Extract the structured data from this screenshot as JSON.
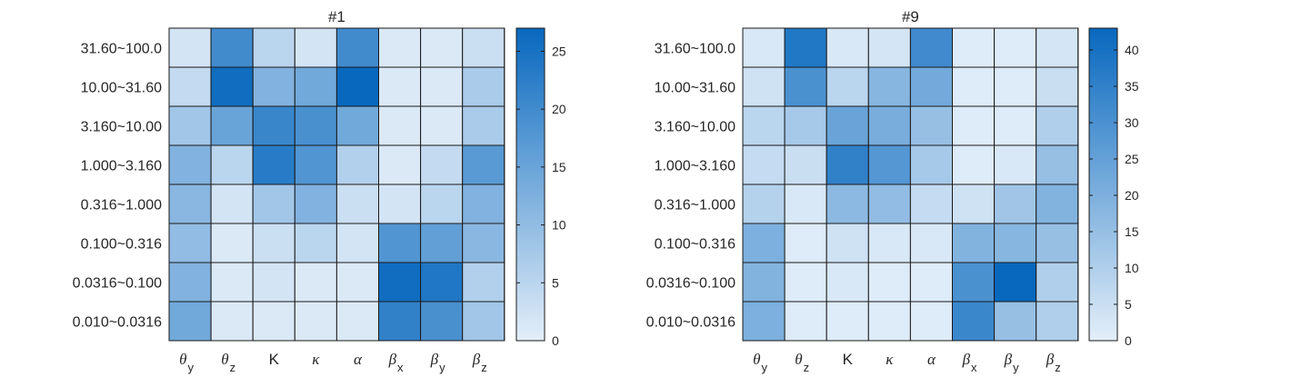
{
  "chart_data": [
    {
      "type": "heatmap",
      "title": "#1",
      "rows": [
        "31.60~100.0",
        "10.00~31.60",
        "3.160~10.00",
        "1.000~3.160",
        "0.316~1.000",
        "0.100~0.316",
        "0.0316~0.100",
        "0.010~0.0316"
      ],
      "columns": [
        {
          "base": "θ",
          "sub": "y"
        },
        {
          "base": "θ",
          "sub": "z"
        },
        {
          "base": "K",
          "sub": ""
        },
        {
          "base": "κ",
          "sub": ""
        },
        {
          "base": "α",
          "sub": ""
        },
        {
          "base": "β",
          "sub": "x"
        },
        {
          "base": "β",
          "sub": "y"
        },
        {
          "base": "β",
          "sub": "z"
        }
      ],
      "values": [
        [
          2,
          20,
          5,
          2,
          20,
          1,
          1,
          3
        ],
        [
          4,
          26,
          12,
          14,
          27,
          1,
          1,
          7
        ],
        [
          8,
          15,
          21,
          19,
          14,
          1,
          1,
          7
        ],
        [
          12,
          5,
          23,
          18,
          6,
          1,
          4,
          17
        ],
        [
          11,
          2,
          8,
          12,
          3,
          2,
          5,
          12
        ],
        [
          10,
          1,
          3,
          5,
          2,
          18,
          16,
          11
        ],
        [
          12,
          1,
          2,
          1,
          1,
          26,
          24,
          6
        ],
        [
          14,
          1,
          1,
          1,
          1,
          22,
          19,
          8
        ]
      ],
      "colorbar": {
        "min": 0,
        "max": 27,
        "ticks": [
          0,
          5,
          10,
          15,
          20,
          25
        ]
      }
    },
    {
      "type": "heatmap",
      "title": "#9",
      "rows": [
        "31.60~100.0",
        "10.00~31.60",
        "3.160~10.00",
        "1.000~3.160",
        "0.316~1.000",
        "0.100~0.316",
        "0.0316~0.100",
        "0.010~0.0316"
      ],
      "columns": [
        {
          "base": "θ",
          "sub": "y"
        },
        {
          "base": "θ",
          "sub": "z"
        },
        {
          "base": "K",
          "sub": ""
        },
        {
          "base": "κ",
          "sub": ""
        },
        {
          "base": "α",
          "sub": ""
        },
        {
          "base": "β",
          "sub": "x"
        },
        {
          "base": "β",
          "sub": "y"
        },
        {
          "base": "β",
          "sub": "z"
        }
      ],
      "values": [
        [
          2,
          38,
          2,
          3,
          32,
          1,
          1,
          3
        ],
        [
          4,
          30,
          8,
          18,
          22,
          1,
          1,
          5
        ],
        [
          8,
          12,
          24,
          21,
          15,
          1,
          1,
          10
        ],
        [
          6,
          5,
          35,
          28,
          12,
          1,
          2,
          15
        ],
        [
          9,
          2,
          17,
          16,
          6,
          4,
          13,
          19
        ],
        [
          20,
          1,
          4,
          2,
          2,
          19,
          18,
          15
        ],
        [
          19,
          1,
          2,
          1,
          1,
          30,
          43,
          10
        ],
        [
          20,
          1,
          1,
          1,
          1,
          33,
          15,
          10
        ]
      ],
      "colorbar": {
        "min": 0,
        "max": 43,
        "ticks": [
          0,
          5,
          10,
          15,
          20,
          25,
          30,
          35,
          40
        ]
      }
    }
  ]
}
